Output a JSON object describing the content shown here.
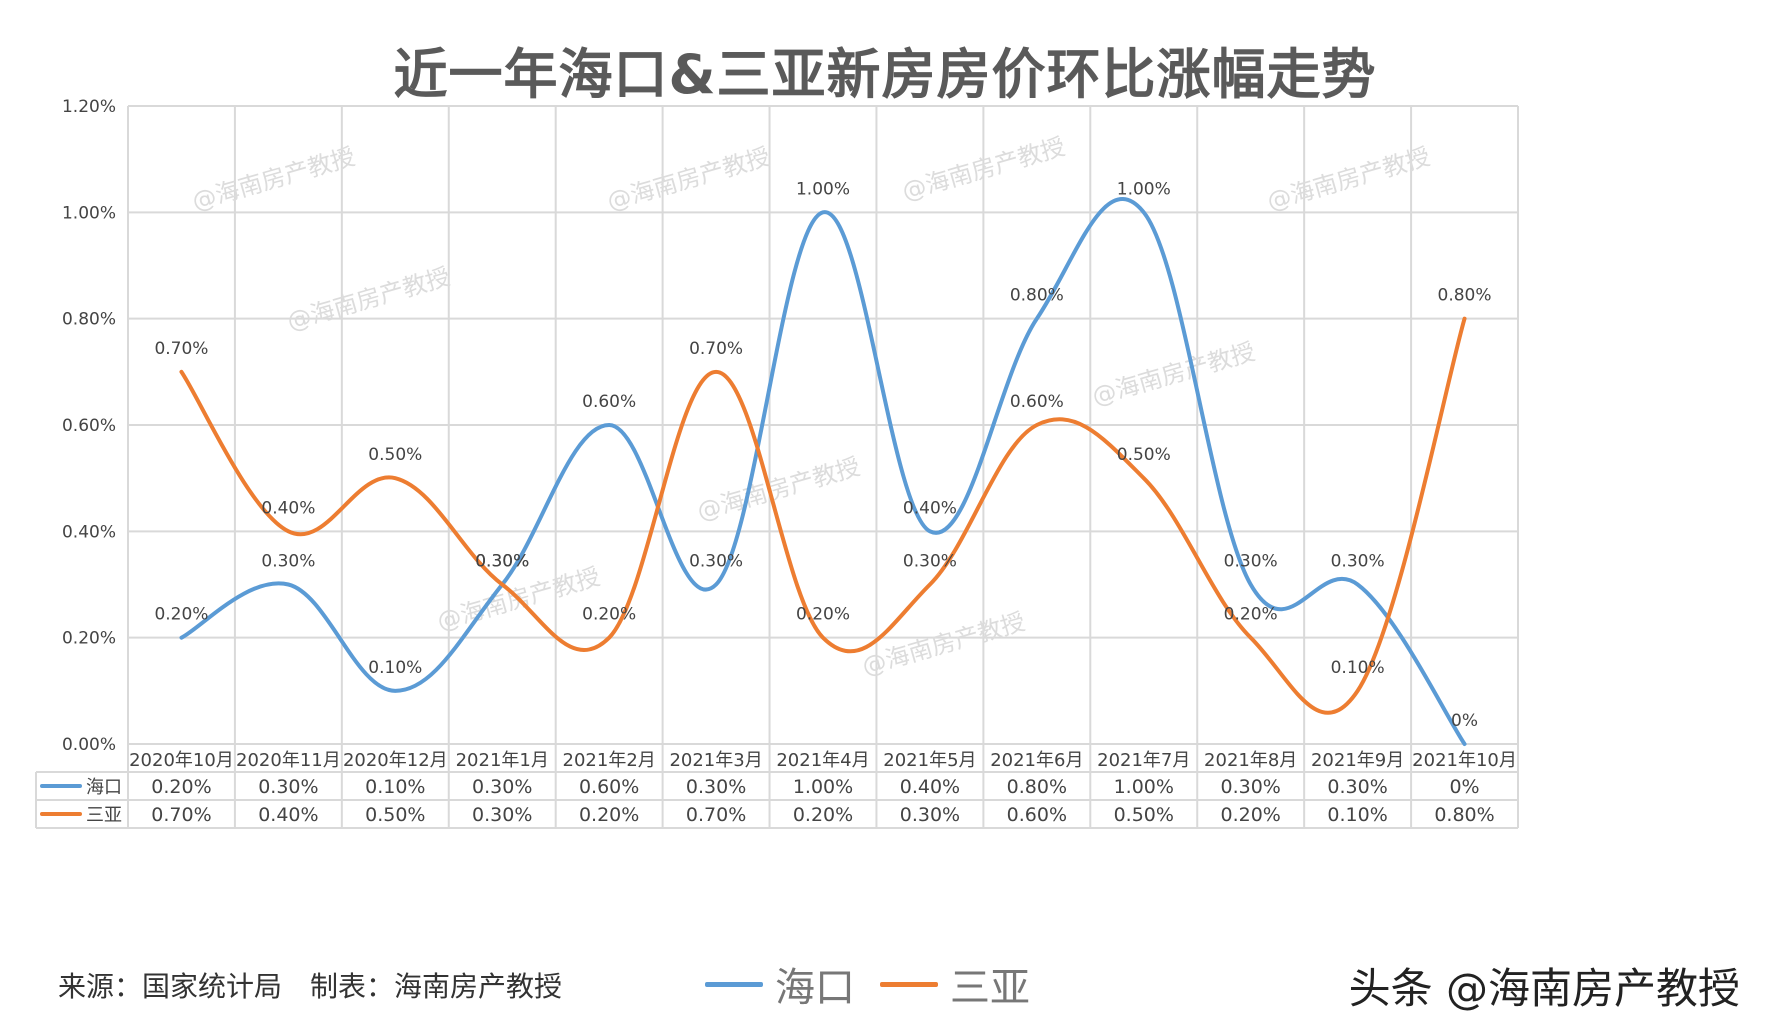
{
  "title": "近一年海口&三亚新房房价环比涨幅走势",
  "footer": {
    "source": "来源：国家统计局　制表：海南房产教授",
    "watermark": "头条 @海南房产教授"
  },
  "watermark_text": "@海南房产教授",
  "chart_data": {
    "type": "line",
    "title": "近一年海口&三亚新房房价环比涨幅走势",
    "categories": [
      "2020年10月",
      "2020年11月",
      "2020年12月",
      "2021年1月",
      "2021年2月",
      "2021年3月",
      "2021年4月",
      "2021年5月",
      "2021年6月",
      "2021年7月",
      "2021年8月",
      "2021年9月",
      "2021年10月"
    ],
    "y_ticks": [
      "0.00%",
      "0.20%",
      "0.40%",
      "0.60%",
      "0.80%",
      "1.00%",
      "1.20%"
    ],
    "ylim": [
      0,
      1.2
    ],
    "grid": true,
    "series": [
      {
        "name": "海口",
        "color": "#5B9BD5",
        "values": [
          0.2,
          0.3,
          0.1,
          0.3,
          0.6,
          0.3,
          1.0,
          0.4,
          0.8,
          1.0,
          0.3,
          0.3,
          0.0
        ],
        "labels": [
          "0.20%",
          "0.30%",
          "0.10%",
          "0.30%",
          "0.60%",
          "0.30%",
          "1.00%",
          "0.40%",
          "0.80%",
          "1.00%",
          "0.30%",
          "0.30%",
          "0%"
        ]
      },
      {
        "name": "三亚",
        "color": "#ED7D31",
        "values": [
          0.7,
          0.4,
          0.5,
          0.3,
          0.2,
          0.7,
          0.2,
          0.3,
          0.6,
          0.5,
          0.2,
          0.1,
          0.8
        ],
        "labels": [
          "0.70%",
          "0.40%",
          "0.50%",
          "0.30%",
          "0.20%",
          "0.70%",
          "0.20%",
          "0.30%",
          "0.60%",
          "0.50%",
          "0.20%",
          "0.10%",
          "0.80%"
        ]
      }
    ],
    "legend_placement": "bottom"
  }
}
